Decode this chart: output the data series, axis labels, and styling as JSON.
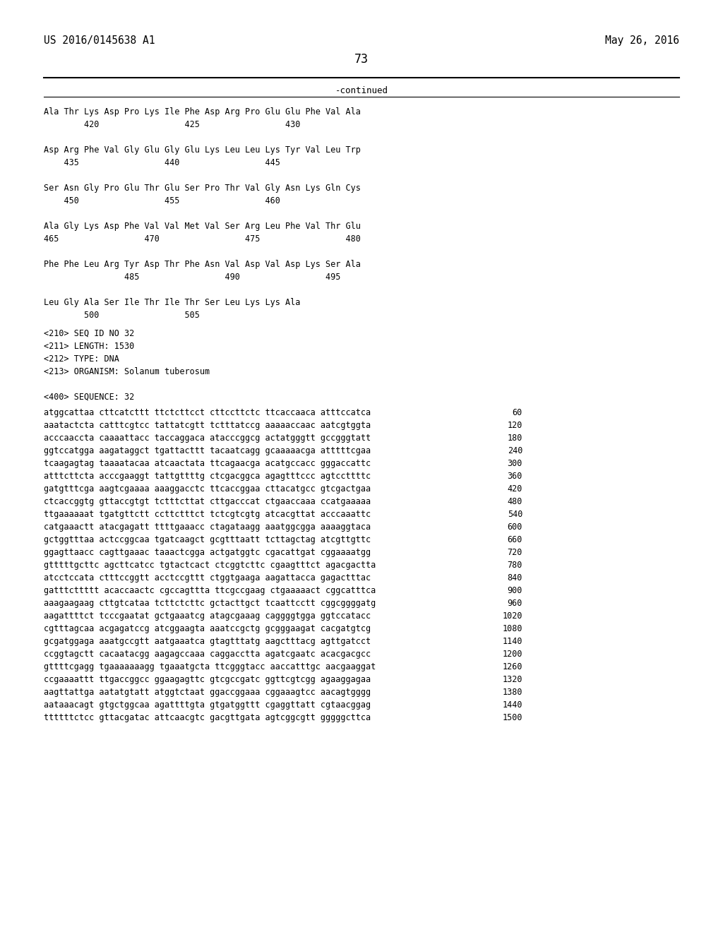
{
  "header_left": "US 2016/0145638 A1",
  "header_right": "May 26, 2016",
  "page_number": "73",
  "continued_text": "-continued",
  "background_color": "#ffffff",
  "text_color": "#000000",
  "font_size_header": 10.5,
  "font_size_body": 9.0,
  "amino_acid_lines": [
    "Ala Thr Lys Asp Pro Lys Ile Phe Asp Arg Pro Glu Glu Phe Val Ala",
    "        420                 425                 430",
    "",
    "Asp Arg Phe Val Gly Glu Gly Glu Lys Leu Leu Lys Tyr Val Leu Trp",
    "    435                 440                 445",
    "",
    "Ser Asn Gly Pro Glu Thr Glu Ser Pro Thr Val Gly Asn Lys Gln Cys",
    "    450                 455                 460",
    "",
    "Ala Gly Lys Asp Phe Val Val Met Val Ser Arg Leu Phe Val Thr Glu",
    "465                 470                 475                 480",
    "",
    "Phe Phe Leu Arg Tyr Asp Thr Phe Asn Val Asp Val Asp Lys Ser Ala",
    "                485                 490                 495",
    "",
    "Leu Gly Ala Ser Ile Thr Ile Thr Ser Leu Lys Lys Ala",
    "        500                 505"
  ],
  "metadata_lines": [
    "<210> SEQ ID NO 32",
    "<211> LENGTH: 1530",
    "<212> TYPE: DNA",
    "<213> ORGANISM: Solanum tuberosum",
    "",
    "<400> SEQUENCE: 32"
  ],
  "sequence_lines": [
    [
      "atggcattaa cttcatcttt ttctcttcct cttccttctc ttcaccaaca atttccatca",
      "60"
    ],
    [
      "aaatactcta catttcgtcc tattatcgtt tctttatccg aaaaaccaac aatcgtggta",
      "120"
    ],
    [
      "acccaaccta caaaattacc taccaggaca atacccggcg actatgggtt gccgggtatt",
      "180"
    ],
    [
      "ggtccatgga aagataggct tgattacttt tacaatcagg gcaaaaacga atttttcgaa",
      "240"
    ],
    [
      "tcaagagtag taaaatacaa atcaactata ttcagaacga acatgccacc gggaccattc",
      "300"
    ],
    [
      "atttcttcta acccgaaggt tattgttttg ctcgacggca agagtttccc agtccttttc",
      "360"
    ],
    [
      "gatgtttcga aagtcgaaaa aaaggacctc ttcaccggaa cttacatgcc gtcgactgaa",
      "420"
    ],
    [
      "ctcaccggtg gttaccgtgt tctttcttat cttgacccat ctgaaccaaa ccatgaaaaa",
      "480"
    ],
    [
      "ttgaaaaaat tgatgttctt ccttctttct tctcgtcgtg atcacgttat acccaaattc",
      "540"
    ],
    [
      "catgaaactt atacgagatt ttttgaaacc ctagataagg aaatggcgga aaaaggtaca",
      "600"
    ],
    [
      "gctggtttaa actccggcaa tgatcaagct gcgtttaatt tcttagctag atcgttgttc",
      "660"
    ],
    [
      "ggagttaacc cagttgaaac taaactcgga actgatggtc cgacattgat cggaaaatgg",
      "720"
    ],
    [
      "gtttttgcttc agcttcatcc tgtactcact ctcggtcttc cgaagtttct agacgactta",
      "780"
    ],
    [
      "atcctccata ctttccggtt acctccgttt ctggtgaaga aagattacca gagactttac",
      "840"
    ],
    [
      "gatttcttttt acaccaactc cgccagttta ttcgccgaag ctgaaaaact cggcatttca",
      "900"
    ],
    [
      "aaagaagaag cttgtcataa tcttctcttc gctacttgct tcaattcctt cggcggggatg",
      "960"
    ],
    [
      "aagattttct tcccgaatat gctgaaatcg atagcgaaag caggggtgga ggtccatacc",
      "1020"
    ],
    [
      "cgtttagcaa acgagatccg atcggaagta aaatccgctg gcgggaagat cacgatgtcg",
      "1080"
    ],
    [
      "gcgatggaga aaatgccgtt aatgaaatca gtagtttatg aagctttacg agttgatcct",
      "1140"
    ],
    [
      "ccggtagctt cacaatacgg aagagccaaa caggacctta agatcgaatc acacgacgcc",
      "1200"
    ],
    [
      "gttttcgagg tgaaaaaaagg tgaaatgcta ttcgggtacc aaccatttgc aacgaaggat",
      "1260"
    ],
    [
      "ccgaaaattt ttgaccggcc ggaagagttc gtcgccgatc ggttcgtcgg agaaggagaa",
      "1320"
    ],
    [
      "aagttattga aatatgtatt atggtctaat ggaccggaaa cggaaagtcc aacagtgggg",
      "1380"
    ],
    [
      "aataaacagt gtgctggcaa agattttgta gtgatggttt cgaggttatt cgtaacggag",
      "1440"
    ],
    [
      "ttttttctcc gttacgatac attcaacgtc gacgttgata agtcggcgtt gggggcttca",
      "1500"
    ]
  ]
}
